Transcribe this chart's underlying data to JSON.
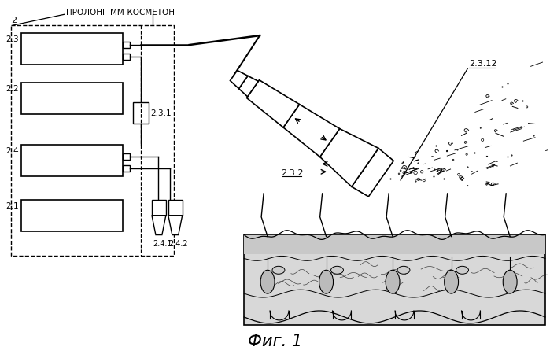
{
  "bg_color": "#ffffff",
  "title": "Фиг. 1",
  "title_fontsize": 15,
  "label_2": "2",
  "label_prolong": "ПРОЛОНГ-ММ-КОСМЕТОН",
  "label_23": "2.3",
  "label_22": "2.2",
  "label_231": "2.3.1",
  "label_24": "2.4",
  "label_21": "2.1",
  "label_241": "2.4.1",
  "label_242": "2.4.2",
  "label_232": "2.3.2",
  "label_2312": "2.3.12"
}
